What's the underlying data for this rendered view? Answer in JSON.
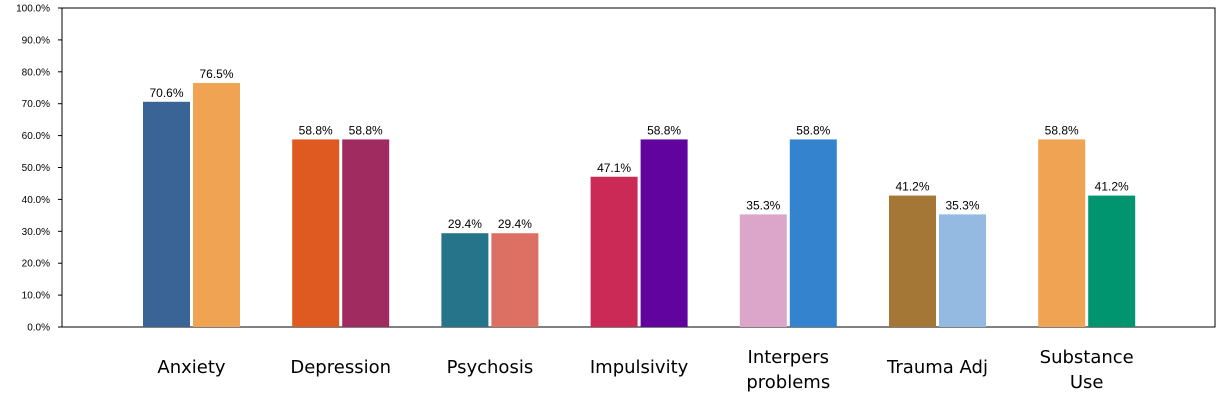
{
  "chart_data": {
    "type": "bar",
    "title": "",
    "xlabel": "",
    "ylabel": "",
    "ylim": [
      0,
      100
    ],
    "yticks": [
      "0.0%",
      "10.0%",
      "20.0%",
      "30.0%",
      "40.0%",
      "50.0%",
      "60.0%",
      "70.0%",
      "80.0%",
      "90.0%",
      "100.0%"
    ],
    "grid": false,
    "legend": "none",
    "categories": [
      {
        "lines": [
          "Anxiety"
        ]
      },
      {
        "lines": [
          "Depression"
        ]
      },
      {
        "lines": [
          "Psychosis"
        ]
      },
      {
        "lines": [
          "Impulsivity"
        ]
      },
      {
        "lines": [
          "Interpers",
          "problems"
        ]
      },
      {
        "lines": [
          "Trauma Adj"
        ]
      },
      {
        "lines": [
          "Substance",
          "Use"
        ]
      }
    ],
    "bars": [
      [
        {
          "value": 70.6,
          "label": "70.6%",
          "color": "#3A6496"
        },
        {
          "value": 76.5,
          "label": "76.5%",
          "color": "#F0A352"
        }
      ],
      [
        {
          "value": 58.8,
          "label": "58.8%",
          "color": "#DE5A20"
        },
        {
          "value": 58.8,
          "label": "58.8%",
          "color": "#A02B60"
        }
      ],
      [
        {
          "value": 29.4,
          "label": "29.4%",
          "color": "#26748A"
        },
        {
          "value": 29.4,
          "label": "29.4%",
          "color": "#DC7062"
        }
      ],
      [
        {
          "value": 47.1,
          "label": "47.1%",
          "color": "#CB2A56"
        },
        {
          "value": 58.8,
          "label": "58.8%",
          "color": "#61049E"
        }
      ],
      [
        {
          "value": 35.3,
          "label": "35.3%",
          "color": "#DBA6C9"
        },
        {
          "value": 58.8,
          "label": "58.8%",
          "color": "#3483CF"
        }
      ],
      [
        {
          "value": 41.2,
          "label": "41.2%",
          "color": "#A57737"
        },
        {
          "value": 35.3,
          "label": "35.3%",
          "color": "#95BAE2"
        }
      ],
      [
        {
          "value": 58.8,
          "label": "58.8%",
          "color": "#F0A352"
        },
        {
          "value": 41.2,
          "label": "41.2%",
          "color": "#00956E"
        }
      ]
    ]
  }
}
